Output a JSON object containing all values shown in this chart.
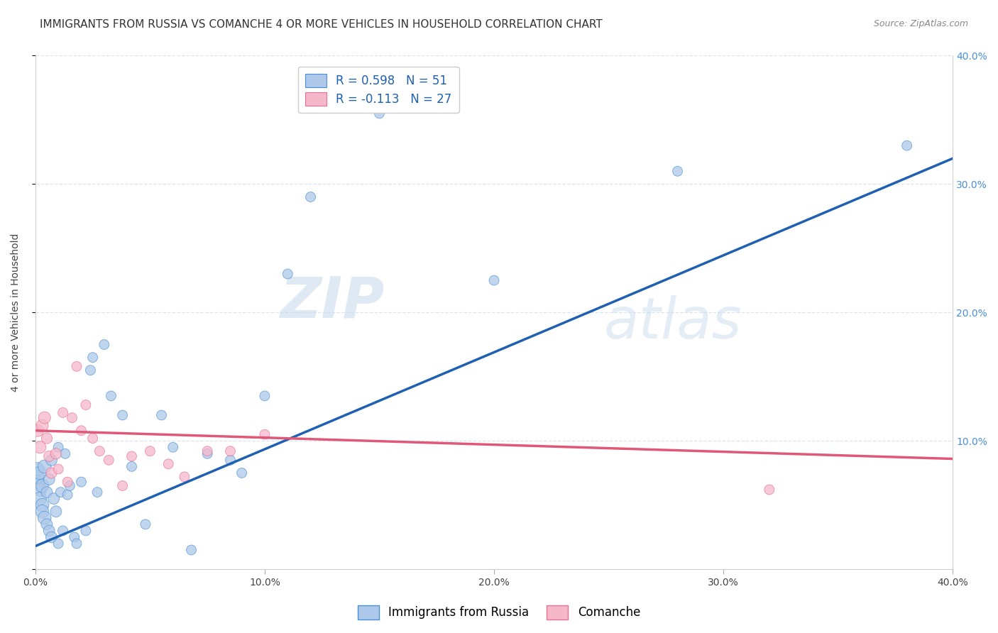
{
  "title": "IMMIGRANTS FROM RUSSIA VS COMANCHE 4 OR MORE VEHICLES IN HOUSEHOLD CORRELATION CHART",
  "source": "Source: ZipAtlas.com",
  "ylabel": "4 or more Vehicles in Household",
  "watermark_zip": "ZIP",
  "watermark_atlas": "atlas",
  "xlim": [
    0.0,
    0.4
  ],
  "ylim": [
    0.0,
    0.4
  ],
  "xticks": [
    0.0,
    0.1,
    0.2,
    0.3,
    0.4
  ],
  "yticks": [
    0.0,
    0.1,
    0.2,
    0.3,
    0.4
  ],
  "xtick_labels": [
    "0.0%",
    "10.0%",
    "20.0%",
    "30.0%",
    "40.0%"
  ],
  "right_ytick_labels": [
    "",
    "10.0%",
    "20.0%",
    "30.0%",
    "40.0%"
  ],
  "blue_R": 0.598,
  "blue_N": 51,
  "pink_R": -0.113,
  "pink_N": 27,
  "blue_fill": "#adc8e8",
  "pink_fill": "#f5b8cb",
  "blue_edge": "#4a90d9",
  "pink_edge": "#e87090",
  "blue_line": "#2060b0",
  "pink_line": "#e05878",
  "right_axis_color": "#4a90d9",
  "legend_label_blue": "Immigrants from Russia",
  "legend_label_pink": "Comanche",
  "blue_scatter_x": [
    0.001,
    0.001,
    0.001,
    0.002,
    0.002,
    0.002,
    0.003,
    0.003,
    0.003,
    0.004,
    0.004,
    0.005,
    0.005,
    0.006,
    0.006,
    0.007,
    0.007,
    0.008,
    0.009,
    0.01,
    0.01,
    0.011,
    0.012,
    0.013,
    0.014,
    0.015,
    0.017,
    0.018,
    0.02,
    0.022,
    0.024,
    0.025,
    0.027,
    0.03,
    0.033,
    0.038,
    0.042,
    0.048,
    0.055,
    0.06,
    0.068,
    0.075,
    0.085,
    0.09,
    0.1,
    0.11,
    0.12,
    0.15,
    0.2,
    0.28,
    0.38
  ],
  "blue_scatter_y": [
    0.068,
    0.072,
    0.078,
    0.062,
    0.075,
    0.055,
    0.05,
    0.045,
    0.065,
    0.04,
    0.08,
    0.06,
    0.035,
    0.07,
    0.03,
    0.085,
    0.025,
    0.055,
    0.045,
    0.095,
    0.02,
    0.06,
    0.03,
    0.09,
    0.058,
    0.065,
    0.025,
    0.02,
    0.068,
    0.03,
    0.155,
    0.165,
    0.06,
    0.175,
    0.135,
    0.12,
    0.08,
    0.035,
    0.12,
    0.095,
    0.015,
    0.09,
    0.085,
    0.075,
    0.135,
    0.23,
    0.29,
    0.355,
    0.225,
    0.31,
    0.33
  ],
  "pink_scatter_x": [
    0.001,
    0.002,
    0.003,
    0.004,
    0.005,
    0.006,
    0.007,
    0.009,
    0.01,
    0.012,
    0.014,
    0.016,
    0.018,
    0.02,
    0.022,
    0.025,
    0.028,
    0.032,
    0.038,
    0.042,
    0.05,
    0.058,
    0.065,
    0.075,
    0.085,
    0.1,
    0.32
  ],
  "pink_scatter_y": [
    0.108,
    0.095,
    0.112,
    0.118,
    0.102,
    0.088,
    0.075,
    0.09,
    0.078,
    0.122,
    0.068,
    0.118,
    0.158,
    0.108,
    0.128,
    0.102,
    0.092,
    0.085,
    0.065,
    0.088,
    0.092,
    0.082,
    0.072,
    0.092,
    0.092,
    0.105,
    0.062
  ],
  "blue_trendline_x": [
    0.0,
    0.4
  ],
  "blue_trendline_y": [
    0.018,
    0.32
  ],
  "pink_trendline_x": [
    0.0,
    0.4
  ],
  "pink_trendline_y": [
    0.108,
    0.086
  ],
  "grid_color": "#d8e4f0",
  "background_color": "#ffffff",
  "title_fontsize": 11,
  "axis_label_fontsize": 10,
  "tick_fontsize": 10,
  "legend_fontsize": 12
}
